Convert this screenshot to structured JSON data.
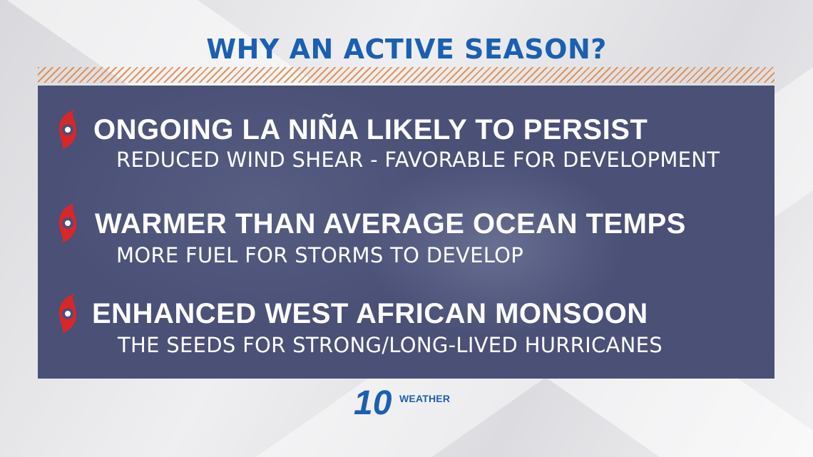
{
  "header": {
    "title": "WHY AN ACTIVE SEASON?"
  },
  "items": [
    {
      "icon": "hurricane-icon",
      "heading": "ONGOING LA NIÑA LIKELY TO PERSIST",
      "detail": "REDUCED WIND SHEAR - FAVORABLE FOR DEVELOPMENT"
    },
    {
      "icon": "hurricane-icon",
      "heading": "WARMER THAN AVERAGE OCEAN TEMPS",
      "detail": "MORE FUEL FOR STORMS TO DEVELOP"
    },
    {
      "icon": "hurricane-icon",
      "heading": "ENHANCED WEST AFRICAN MONSOON",
      "detail": "THE SEEDS FOR STRONG/LONG-LIVED HURRICANES"
    }
  ],
  "logo": {
    "number": "10",
    "word": "WEATHER"
  },
  "colors": {
    "title": "#1b5fb0",
    "panel": "#4a5076",
    "icon": "#d9262b",
    "stripes": "#e08a4b"
  }
}
